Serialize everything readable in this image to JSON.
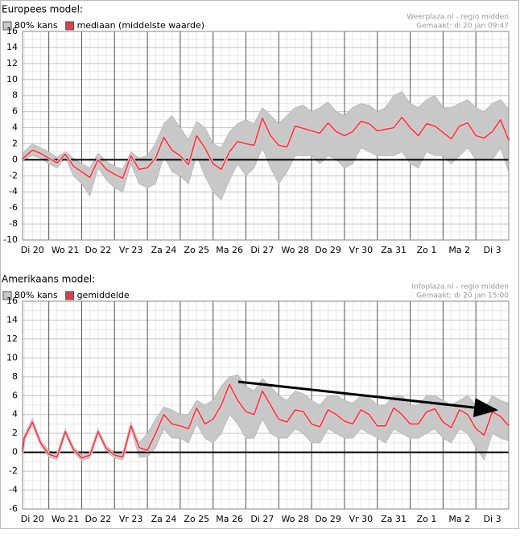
{
  "chart_data": [
    {
      "type": "line",
      "title": "Europees model:",
      "source": "Weerplaza.nl - regio midden",
      "made": "Gemaakt: di 20 jan 09:47",
      "xlim": [
        0.2,
        15
      ],
      "ylim": [
        -10,
        16
      ],
      "grid": true,
      "yticks": [
        -10,
        -8,
        -6,
        -4,
        -2,
        0,
        2,
        4,
        6,
        8,
        10,
        12,
        14,
        16
      ],
      "xticks": [
        {
          "value": 0.5,
          "label": "Di 20"
        },
        {
          "value": 1.5,
          "label": "Wo 21"
        },
        {
          "value": 2.5,
          "label": "Do 22"
        },
        {
          "value": 3.5,
          "label": "Vr 23"
        },
        {
          "value": 4.5,
          "label": "Za 24"
        },
        {
          "value": 5.5,
          "label": "Zo 25"
        },
        {
          "value": 6.5,
          "label": "Ma 26"
        },
        {
          "value": 7.5,
          "label": "Di 27"
        },
        {
          "value": 8.5,
          "label": "Wo 28"
        },
        {
          "value": 9.5,
          "label": "Do 29"
        },
        {
          "value": 10.5,
          "label": "Vr 30"
        },
        {
          "value": 11.5,
          "label": "Za 31"
        },
        {
          "value": 12.5,
          "label": "Zo 1"
        },
        {
          "value": 13.5,
          "label": "Ma 2"
        },
        {
          "value": 14.5,
          "label": "Di 3"
        }
      ],
      "x": [
        0.2,
        0.25,
        0.5,
        0.75,
        1,
        1.25,
        1.5,
        1.75,
        2,
        2.25,
        2.5,
        2.75,
        3,
        3.25,
        3.5,
        3.75,
        4,
        4.25,
        4.5,
        4.75,
        5,
        5.25,
        5.5,
        5.75,
        6,
        6.25,
        6.5,
        6.75,
        7,
        7.25,
        7.5,
        7.75,
        8,
        8.25,
        8.5,
        8.75,
        9,
        9.25,
        9.5,
        9.75,
        10,
        10.25,
        10.5,
        10.75,
        11,
        11.25,
        11.5,
        11.75,
        12,
        12.25,
        12.5,
        12.75,
        13,
        13.25,
        13.5,
        13.75,
        14,
        14.25,
        14.5,
        14.75,
        15
      ],
      "series": [
        {
          "name": "80% kans",
          "color": "#c8c8c8",
          "upper": [
            0.5,
            1.0,
            2.0,
            1.5,
            1.0,
            0.3,
            1.0,
            0.2,
            -0.5,
            -1.0,
            0.8,
            -0.2,
            -0.8,
            -1.2,
            1.0,
            0.2,
            0.5,
            2.0,
            4.5,
            5.5,
            4.0,
            2.5,
            4.8,
            4.0,
            2.0,
            1.5,
            3.5,
            4.5,
            5.0,
            4.5,
            6.5,
            5.5,
            4.5,
            5.5,
            6.5,
            6.8,
            6.0,
            6.5,
            7.2,
            6.0,
            5.5,
            6.5,
            7.0,
            6.8,
            6.0,
            6.5,
            8.0,
            8.5,
            7.0,
            6.5,
            7.5,
            8.0,
            6.5,
            6.5,
            7.0,
            7.5,
            6.5,
            6.0,
            7.0,
            7.5,
            6.3
          ],
          "lower": [
            -0.3,
            0.0,
            0.5,
            0.2,
            -0.5,
            -1.0,
            0.3,
            -2.0,
            -3.0,
            -4.5,
            -1.0,
            -2.5,
            -3.5,
            -4.0,
            -0.5,
            -3.0,
            -3.5,
            -3.0,
            0.5,
            -1.5,
            -2.0,
            -3.0,
            0.5,
            -2.0,
            -4.0,
            -5.0,
            -2.5,
            -0.5,
            -2.0,
            -1.0,
            1.5,
            -1.0,
            -3.0,
            -1.5,
            0.5,
            0.5,
            0.5,
            -0.5,
            0.5,
            0.0,
            -1.0,
            -0.5,
            1.5,
            1.0,
            0.5,
            0.5,
            0.5,
            1.0,
            -0.5,
            -1.0,
            1.0,
            0.5,
            0.5,
            -0.5,
            0.5,
            1.5,
            0.0,
            0.0,
            0.0,
            1.5,
            -1.5
          ]
        },
        {
          "name": "mediaan (middelste waarde)",
          "color": "#d9404a",
          "values": [
            0.0,
            0.3,
            1.2,
            0.8,
            0.2,
            -0.4,
            0.7,
            -0.8,
            -1.5,
            -2.2,
            0.0,
            -1.2,
            -1.8,
            -2.3,
            0.5,
            -1.2,
            -1.0,
            0.2,
            2.8,
            1.2,
            0.5,
            -0.6,
            3.0,
            1.5,
            -0.5,
            -1.2,
            1.0,
            2.3,
            2.0,
            1.8,
            5.2,
            3.0,
            1.8,
            1.6,
            4.2,
            3.9,
            3.6,
            3.3,
            4.6,
            3.5,
            3.0,
            3.5,
            4.8,
            4.5,
            3.6,
            3.8,
            4.0,
            5.3,
            4.0,
            3.0,
            4.5,
            4.2,
            3.4,
            2.6,
            4.2,
            4.6,
            3.0,
            2.7,
            3.5,
            5.0,
            2.4
          ]
        }
      ]
    },
    {
      "type": "line",
      "title": "Amerikaans model:",
      "source": "Infoplaza.nl - regio midden",
      "made": "Gemaakt: di 20 jan 15:00",
      "xlim": [
        0.2,
        15
      ],
      "ylim": [
        -6,
        16
      ],
      "grid": true,
      "yticks": [
        -6,
        -4,
        -2,
        0,
        2,
        4,
        6,
        8,
        10,
        12,
        14,
        16
      ],
      "xticks": [
        {
          "value": 0.5,
          "label": "Di 20"
        },
        {
          "value": 1.5,
          "label": "Wo 21"
        },
        {
          "value": 2.5,
          "label": "Do 22"
        },
        {
          "value": 3.5,
          "label": "Vr 23"
        },
        {
          "value": 4.5,
          "label": "Za 24"
        },
        {
          "value": 5.5,
          "label": "Zo 25"
        },
        {
          "value": 6.5,
          "label": "Ma 26"
        },
        {
          "value": 7.5,
          "label": "Di 27"
        },
        {
          "value": 8.5,
          "label": "Wo 28"
        },
        {
          "value": 9.5,
          "label": "Do 29"
        },
        {
          "value": 10.5,
          "label": "Vr 30"
        },
        {
          "value": 11.5,
          "label": "Za 31"
        },
        {
          "value": 12.5,
          "label": "Zo 1"
        },
        {
          "value": 13.5,
          "label": "Ma 2"
        },
        {
          "value": 14.5,
          "label": "Di 3"
        }
      ],
      "x": [
        0.2,
        0.25,
        0.5,
        0.75,
        1,
        1.25,
        1.5,
        1.75,
        2,
        2.25,
        2.5,
        2.75,
        3,
        3.25,
        3.5,
        3.75,
        4,
        4.25,
        4.5,
        4.75,
        5,
        5.25,
        5.5,
        5.75,
        6,
        6.25,
        6.5,
        6.75,
        7,
        7.25,
        7.5,
        7.75,
        8,
        8.25,
        8.5,
        8.75,
        9,
        9.25,
        9.5,
        9.75,
        10,
        10.25,
        10.5,
        10.75,
        11,
        11.25,
        11.5,
        11.75,
        12,
        12.25,
        12.5,
        12.75,
        13,
        13.25,
        13.5,
        13.75,
        14,
        14.25,
        14.5,
        14.75,
        15
      ],
      "series": [
        {
          "name": "80% kans",
          "color": "#c8c8c8",
          "upper": [
            0.3,
            1.8,
            3.6,
            1.3,
            0.2,
            -0.2,
            2.5,
            0.6,
            -0.3,
            0.0,
            2.5,
            0.7,
            0.0,
            -0.2,
            3.2,
            1.0,
            2.0,
            3.5,
            4.8,
            4.5,
            4.0,
            4.0,
            5.5,
            5.0,
            5.5,
            7.0,
            8.0,
            8.2,
            7.0,
            6.5,
            7.8,
            7.0,
            6.0,
            5.5,
            6.5,
            6.2,
            5.5,
            5.0,
            6.0,
            6.0,
            5.5,
            5.2,
            6.0,
            5.8,
            5.0,
            5.0,
            6.0,
            6.0,
            5.0,
            5.0,
            6.0,
            6.0,
            5.5,
            5.0,
            5.5,
            6.0,
            5.0,
            4.5,
            6.0,
            5.5,
            5.2
          ],
          "lower": [
            -0.2,
            1.2,
            2.8,
            0.7,
            -0.5,
            -0.8,
            2.0,
            0.0,
            -0.9,
            -0.6,
            1.9,
            0.1,
            -0.6,
            -0.8,
            2.5,
            -0.5,
            -0.5,
            0.5,
            2.5,
            1.5,
            1.5,
            1.0,
            3.0,
            1.5,
            1.0,
            2.0,
            4.0,
            3.0,
            1.5,
            1.5,
            3.5,
            2.0,
            1.5,
            1.5,
            2.5,
            2.0,
            1.0,
            1.0,
            2.5,
            2.0,
            1.5,
            1.5,
            2.5,
            2.0,
            1.5,
            1.0,
            2.5,
            2.0,
            1.5,
            1.5,
            2.0,
            2.5,
            1.5,
            1.0,
            2.5,
            2.0,
            0.5,
            -0.8,
            2.0,
            1.5,
            1.2
          ]
        },
        {
          "name": "gemiddelde",
          "color": "#d9404a",
          "values": [
            0.0,
            1.5,
            3.2,
            1.0,
            -0.2,
            -0.5,
            2.2,
            0.3,
            -0.6,
            -0.3,
            2.2,
            0.4,
            -0.3,
            -0.5,
            2.8,
            0.5,
            0.2,
            2.0,
            4.0,
            3.0,
            2.8,
            2.5,
            4.7,
            3.0,
            3.5,
            5.0,
            7.2,
            5.5,
            4.3,
            4.0,
            6.5,
            5.0,
            3.5,
            3.2,
            4.5,
            4.3,
            3.0,
            2.7,
            4.5,
            4.0,
            3.3,
            3.0,
            4.5,
            4.0,
            2.8,
            2.8,
            4.7,
            4.0,
            3.0,
            3.0,
            4.3,
            4.6,
            3.2,
            2.6,
            4.5,
            4.0,
            2.5,
            1.8,
            4.3,
            3.8,
            2.8
          ]
        }
      ]
    }
  ]
}
